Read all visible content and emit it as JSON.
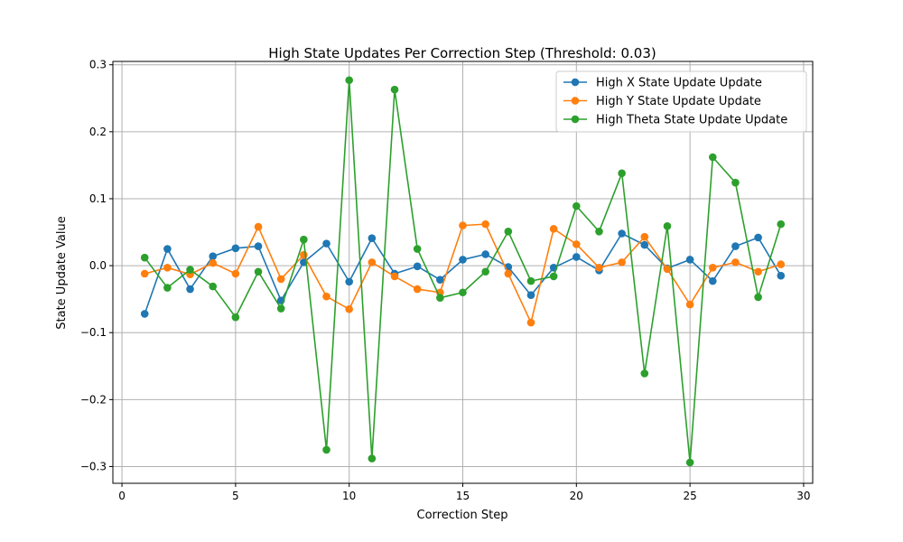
{
  "chart_data": {
    "type": "line",
    "title": "High State Updates Per Correction Step (Threshold: 0.03)",
    "xlabel": "Correction Step",
    "ylabel": "State Update Value",
    "xlim": [
      -0.4,
      30.4
    ],
    "ylim": [
      -0.325,
      0.305
    ],
    "xticks": [
      0,
      5,
      10,
      15,
      20,
      25,
      30
    ],
    "xtick_labels": [
      "0",
      "5",
      "10",
      "15",
      "20",
      "25",
      "30"
    ],
    "yticks": [
      -0.3,
      -0.2,
      -0.1,
      0.0,
      0.1,
      0.2,
      0.3
    ],
    "ytick_labels": [
      "−0.3",
      "−0.2",
      "−0.1",
      "0.0",
      "0.1",
      "0.2",
      "0.3"
    ],
    "grid": true,
    "legend_position": "upper right",
    "x": [
      1,
      2,
      3,
      4,
      5,
      6,
      7,
      8,
      9,
      10,
      11,
      12,
      13,
      14,
      15,
      16,
      17,
      18,
      19,
      20,
      21,
      22,
      23,
      24,
      25,
      26,
      27,
      28,
      29
    ],
    "series": [
      {
        "name": "High X State Update Update",
        "color": "#1f77b4",
        "values": [
          -0.072,
          0.025,
          -0.035,
          0.014,
          0.026,
          0.029,
          -0.052,
          0.005,
          0.033,
          -0.024,
          0.041,
          -0.012,
          -0.001,
          -0.021,
          0.009,
          0.017,
          -0.002,
          -0.044,
          -0.003,
          0.013,
          -0.007,
          0.048,
          0.031,
          -0.004,
          0.009,
          -0.023,
          0.029,
          0.042,
          -0.015
        ]
      },
      {
        "name": "High Y State Update Update",
        "color": "#ff7f0e",
        "values": [
          -0.012,
          -0.003,
          -0.013,
          0.004,
          -0.012,
          0.058,
          -0.02,
          0.016,
          -0.046,
          -0.065,
          0.005,
          -0.016,
          -0.035,
          -0.04,
          0.06,
          0.062,
          -0.012,
          -0.085,
          0.055,
          0.032,
          -0.003,
          0.005,
          0.043,
          -0.005,
          -0.058,
          -0.003,
          0.005,
          -0.009,
          0.002
        ]
      },
      {
        "name": "High Theta State Update Update",
        "color": "#2ca02c",
        "values": [
          0.012,
          -0.033,
          -0.006,
          -0.031,
          -0.077,
          -0.009,
          -0.064,
          0.039,
          -0.275,
          0.277,
          -0.288,
          0.263,
          0.025,
          -0.048,
          -0.04,
          -0.009,
          0.051,
          -0.023,
          -0.016,
          0.089,
          0.051,
          0.138,
          -0.161,
          0.059,
          -0.294,
          0.162,
          0.124,
          -0.047,
          0.062
        ]
      }
    ]
  }
}
